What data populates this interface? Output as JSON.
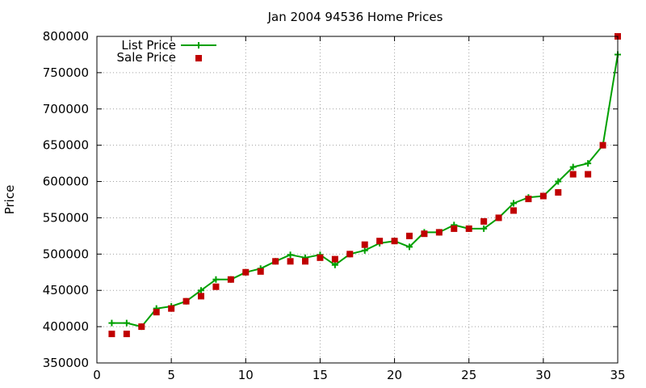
{
  "chart_data": {
    "type": "line",
    "title": "Jan 2004 94536 Home Prices",
    "xlabel": "",
    "ylabel": "Price",
    "xlim": [
      0,
      35
    ],
    "ylim": [
      350000,
      800000
    ],
    "xticks": [
      0,
      5,
      10,
      15,
      20,
      25,
      30,
      35
    ],
    "yticks": [
      350000,
      400000,
      450000,
      500000,
      550000,
      600000,
      650000,
      700000,
      750000,
      800000
    ],
    "grid": true,
    "legend_position": "top-left",
    "series": [
      {
        "name": "List Price",
        "style": "linespoints",
        "marker": "plus",
        "color": "#00a000",
        "points": [
          [
            1,
            405000
          ],
          [
            2,
            405000
          ],
          [
            3,
            400000
          ],
          [
            4,
            425000
          ],
          [
            5,
            428000
          ],
          [
            6,
            435000
          ],
          [
            7,
            450000
          ],
          [
            8,
            465000
          ],
          [
            9,
            465000
          ],
          [
            10,
            475000
          ],
          [
            11,
            480000
          ],
          [
            12,
            490000
          ],
          [
            13,
            499000
          ],
          [
            14,
            495000
          ],
          [
            15,
            499000
          ],
          [
            16,
            485000
          ],
          [
            17,
            500000
          ],
          [
            18,
            505000
          ],
          [
            19,
            515000
          ],
          [
            20,
            518000
          ],
          [
            21,
            510000
          ],
          [
            22,
            530000
          ],
          [
            23,
            530000
          ],
          [
            24,
            540000
          ],
          [
            25,
            535000
          ],
          [
            26,
            535000
          ],
          [
            27,
            550000
          ],
          [
            28,
            570000
          ],
          [
            29,
            578000
          ],
          [
            30,
            580000
          ],
          [
            31,
            600000
          ],
          [
            32,
            620000
          ],
          [
            33,
            625000
          ],
          [
            34,
            650000
          ],
          [
            35,
            775000
          ]
        ]
      },
      {
        "name": "Sale Price",
        "style": "points",
        "marker": "square",
        "color": "#c00000",
        "points": [
          [
            1,
            390000
          ],
          [
            2,
            390000
          ],
          [
            3,
            400000
          ],
          [
            4,
            420000
          ],
          [
            5,
            425000
          ],
          [
            6,
            435000
          ],
          [
            7,
            442000
          ],
          [
            8,
            455000
          ],
          [
            9,
            465000
          ],
          [
            10,
            475000
          ],
          [
            11,
            476000
          ],
          [
            12,
            490000
          ],
          [
            13,
            490000
          ],
          [
            14,
            490000
          ],
          [
            15,
            495000
          ],
          [
            16,
            493000
          ],
          [
            17,
            500000
          ],
          [
            18,
            513000
          ],
          [
            19,
            518000
          ],
          [
            20,
            518000
          ],
          [
            21,
            525000
          ],
          [
            22,
            528000
          ],
          [
            23,
            530000
          ],
          [
            24,
            535000
          ],
          [
            25,
            535000
          ],
          [
            26,
            545000
          ],
          [
            27,
            550000
          ],
          [
            28,
            560000
          ],
          [
            29,
            576000
          ],
          [
            30,
            580000
          ],
          [
            31,
            585000
          ],
          [
            32,
            610000
          ],
          [
            33,
            610000
          ],
          [
            34,
            650000
          ],
          [
            35,
            800000
          ]
        ]
      }
    ]
  }
}
